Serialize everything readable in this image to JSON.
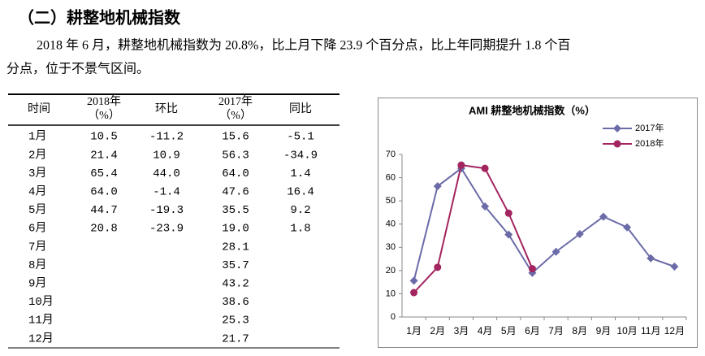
{
  "heading": "（二）耕整地机械指数",
  "paragraph": [
    "2018 年 6 月，耕整地机械指数为 20.8%，比上月下降 23.9 个百分点，比上年同期提升 1.8 个百",
    "分点，位于不景气区间。"
  ],
  "table": {
    "header": [
      [
        "时间"
      ],
      [
        "2018年",
        "（%）"
      ],
      [
        "环比"
      ],
      [
        "2017年",
        "（%）"
      ],
      [
        "同比"
      ]
    ],
    "rows": [
      [
        "1月",
        "10.5",
        "-11.2",
        "15.6",
        "-5.1"
      ],
      [
        "2月",
        "21.4",
        "10.9",
        "56.3",
        "-34.9"
      ],
      [
        "3月",
        "65.4",
        "44.0",
        "64.0",
        "1.4"
      ],
      [
        "4月",
        "64.0",
        "-1.4",
        "47.6",
        "16.4"
      ],
      [
        "5月",
        "44.7",
        "-19.3",
        "35.5",
        "9.2"
      ],
      [
        "6月",
        "20.8",
        "-23.9",
        "19.0",
        "1.8"
      ],
      [
        "7月",
        null,
        null,
        "28.1",
        null
      ],
      [
        "8月",
        null,
        null,
        "35.7",
        null
      ],
      [
        "9月",
        null,
        null,
        "43.2",
        null
      ],
      [
        "10月",
        null,
        null,
        "38.6",
        null
      ],
      [
        "11月",
        null,
        null,
        "25.3",
        null
      ],
      [
        "12月",
        null,
        null,
        "21.7",
        null
      ]
    ]
  },
  "chart_data": {
    "type": "line",
    "title": "AMI 耕整地机械指数（%）",
    "categories": [
      "1月",
      "2月",
      "3月",
      "4月",
      "5月",
      "6月",
      "7月",
      "8月",
      "9月",
      "10月",
      "11月",
      "12月"
    ],
    "series": [
      {
        "name": "2017年",
        "color": "#6b6ba8",
        "marker": "diamond",
        "values": [
          15.6,
          56.3,
          64.0,
          47.6,
          35.5,
          19.0,
          28.1,
          35.7,
          43.2,
          38.6,
          25.3,
          21.7
        ]
      },
      {
        "name": "2018年",
        "color": "#a3245e",
        "marker": "circle",
        "values": [
          10.5,
          21.4,
          65.4,
          64.0,
          44.7,
          20.8,
          null,
          null,
          null,
          null,
          null,
          null
        ]
      }
    ],
    "ylim": [
      0,
      70
    ],
    "yticks": [
      0,
      10,
      20,
      30,
      40,
      50,
      60,
      70
    ],
    "legend": "top-right"
  }
}
